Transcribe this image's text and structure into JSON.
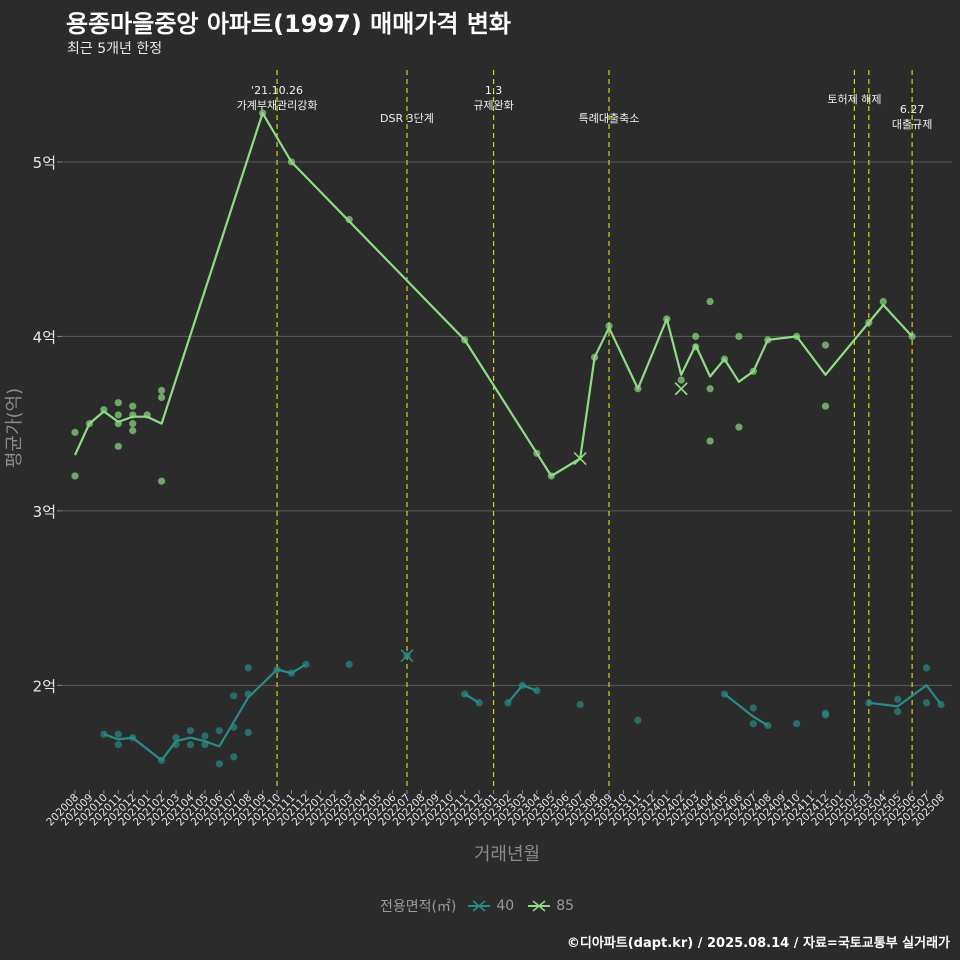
{
  "title": "용종마을중앙 아파트(1997) 매매가격 변화",
  "subtitle": "최근 5개년 한정",
  "caption": "©디아파트(dapt.kr) / 2025.08.14 / 자료=국토교통부 실거래가",
  "legend": {
    "title": "전용면적(㎡)",
    "items": [
      {
        "label": "40",
        "color": "#2a8c88"
      },
      {
        "label": "85",
        "color": "#8fdc84"
      }
    ]
  },
  "colors": {
    "background": "#2b2b2b",
    "grid": "#5a5a5a",
    "event_line": "#d4d41a",
    "series_40": "#2a8c88",
    "series_85": "#8fdc84"
  },
  "chart_data": {
    "type": "line",
    "xlabel": "거래년월",
    "ylabel": "평균가(억)",
    "ylim": [
      1.4,
      5.55
    ],
    "yticks": [
      {
        "value": 2,
        "label": "2억"
      },
      {
        "value": 3,
        "label": "3억"
      },
      {
        "value": 4,
        "label": "4억"
      },
      {
        "value": 5,
        "label": "5억"
      }
    ],
    "x_categories": [
      "202008",
      "202009",
      "202010",
      "202011",
      "202012",
      "202101",
      "202102",
      "202103",
      "202104",
      "202105",
      "202106",
      "202107",
      "202108",
      "202109",
      "202110",
      "202111",
      "202112",
      "202201",
      "202202",
      "202203",
      "202204",
      "202205",
      "202206",
      "202207",
      "202208",
      "202209",
      "202210",
      "202211",
      "202212",
      "202301",
      "202302",
      "202303",
      "202304",
      "202305",
      "202306",
      "202307",
      "202308",
      "202309",
      "202310",
      "202311",
      "202312",
      "202401",
      "202402",
      "202403",
      "202404",
      "202405",
      "202406",
      "202407",
      "202408",
      "202409",
      "202410",
      "202411",
      "202412",
      "202501",
      "202502",
      "202503",
      "202504",
      "202505",
      "202506",
      "202507",
      "202508"
    ],
    "events": [
      {
        "x": "202110",
        "label": "'21.10.26\n가계부채관리강화"
      },
      {
        "x": "202207",
        "label": "DSR 3단계"
      },
      {
        "x": "202301",
        "label": "1.3\n규제완화"
      },
      {
        "x": "202309",
        "label": "특례대출축소"
      },
      {
        "x": "202502",
        "label": "토허제 해제"
      },
      {
        "x": "202503",
        "label": ""
      },
      {
        "x": "202506",
        "label": "6.27\n대출규제"
      }
    ],
    "series": [
      {
        "name": "85",
        "line": [
          {
            "x": "202008",
            "y": 3.32
          },
          {
            "x": "202009",
            "y": 3.5
          },
          {
            "x": "202010",
            "y": 3.57
          },
          {
            "x": "202011",
            "y": 3.51
          },
          {
            "x": "202012",
            "y": 3.54
          },
          {
            "x": "202101",
            "y": 3.54
          },
          {
            "x": "202102",
            "y": 3.5
          },
          {
            "x": "202109",
            "y": 5.28
          },
          {
            "x": "202111",
            "y": 5.0
          },
          {
            "x": "202211",
            "y": 3.98
          },
          {
            "x": "202304",
            "y": 3.33
          },
          {
            "x": "202305",
            "y": 3.2
          },
          {
            "x": "202307",
            "y": 3.3
          },
          {
            "x": "202308",
            "y": 3.88
          },
          {
            "x": "202309",
            "y": 4.05
          },
          {
            "x": "202311",
            "y": 3.7
          },
          {
            "x": "202401",
            "y": 4.1
          },
          {
            "x": "202402",
            "y": 3.78
          },
          {
            "x": "202403",
            "y": 3.95
          },
          {
            "x": "202404",
            "y": 3.77
          },
          {
            "x": "202405",
            "y": 3.87
          },
          {
            "x": "202406",
            "y": 3.74
          },
          {
            "x": "202407",
            "y": 3.8
          },
          {
            "x": "202408",
            "y": 3.98
          },
          {
            "x": "202410",
            "y": 4.0
          },
          {
            "x": "202412",
            "y": 3.78
          },
          {
            "x": "202503",
            "y": 4.08
          },
          {
            "x": "202504",
            "y": 4.18
          },
          {
            "x": "202506",
            "y": 4.0
          }
        ],
        "points": [
          {
            "x": "202008",
            "y": 3.45
          },
          {
            "x": "202008",
            "y": 3.2
          },
          {
            "x": "202009",
            "y": 3.5
          },
          {
            "x": "202010",
            "y": 3.58
          },
          {
            "x": "202011",
            "y": 3.62
          },
          {
            "x": "202011",
            "y": 3.55
          },
          {
            "x": "202011",
            "y": 3.5
          },
          {
            "x": "202011",
            "y": 3.37
          },
          {
            "x": "202012",
            "y": 3.6
          },
          {
            "x": "202012",
            "y": 3.55
          },
          {
            "x": "202012",
            "y": 3.5
          },
          {
            "x": "202012",
            "y": 3.46
          },
          {
            "x": "202101",
            "y": 3.55
          },
          {
            "x": "202102",
            "y": 3.69
          },
          {
            "x": "202102",
            "y": 3.65
          },
          {
            "x": "202102",
            "y": 3.17
          },
          {
            "x": "202109",
            "y": 5.28
          },
          {
            "x": "202111",
            "y": 5.0
          },
          {
            "x": "202203",
            "y": 4.67
          },
          {
            "x": "202211",
            "y": 3.98
          },
          {
            "x": "202304",
            "y": 3.33
          },
          {
            "x": "202305",
            "y": 3.2
          },
          {
            "x": "202308",
            "y": 3.88
          },
          {
            "x": "202309",
            "y": 4.06
          },
          {
            "x": "202311",
            "y": 3.7
          },
          {
            "x": "202401",
            "y": 4.1
          },
          {
            "x": "202402",
            "y": 3.75
          },
          {
            "x": "202403",
            "y": 4.0
          },
          {
            "x": "202403",
            "y": 3.94
          },
          {
            "x": "202404",
            "y": 4.2
          },
          {
            "x": "202404",
            "y": 3.7
          },
          {
            "x": "202404",
            "y": 3.4
          },
          {
            "x": "202405",
            "y": 3.87
          },
          {
            "x": "202406",
            "y": 4.0
          },
          {
            "x": "202406",
            "y": 3.48
          },
          {
            "x": "202407",
            "y": 3.8
          },
          {
            "x": "202408",
            "y": 3.98
          },
          {
            "x": "202410",
            "y": 4.0
          },
          {
            "x": "202412",
            "y": 3.95
          },
          {
            "x": "202412",
            "y": 3.6
          },
          {
            "x": "202503",
            "y": 4.08
          },
          {
            "x": "202504",
            "y": 4.2
          },
          {
            "x": "202506",
            "y": 4.0
          }
        ],
        "cancelled": [
          {
            "x": "202307",
            "y": 3.3
          },
          {
            "x": "202402",
            "y": 3.7
          }
        ]
      },
      {
        "name": "40",
        "line": [
          [
            {
              "x": "202010",
              "y": 1.72
            },
            {
              "x": "202011",
              "y": 1.69
            },
            {
              "x": "202012",
              "y": 1.7
            },
            {
              "x": "202102",
              "y": 1.57
            },
            {
              "x": "202103",
              "y": 1.68
            },
            {
              "x": "202104",
              "y": 1.7
            },
            {
              "x": "202105",
              "y": 1.68
            },
            {
              "x": "202106",
              "y": 1.65
            },
            {
              "x": "202108",
              "y": 1.93
            },
            {
              "x": "202110",
              "y": 2.09
            },
            {
              "x": "202111",
              "y": 2.07
            },
            {
              "x": "202112",
              "y": 2.12
            }
          ],
          [
            {
              "x": "202211",
              "y": 1.95
            },
            {
              "x": "202212",
              "y": 1.9
            }
          ],
          [
            {
              "x": "202302",
              "y": 1.9
            },
            {
              "x": "202303",
              "y": 2.0
            },
            {
              "x": "202304",
              "y": 1.97
            }
          ],
          [
            {
              "x": "202405",
              "y": 1.95
            },
            {
              "x": "202407",
              "y": 1.82
            },
            {
              "x": "202408",
              "y": 1.77
            }
          ],
          [
            {
              "x": "202503",
              "y": 1.9
            },
            {
              "x": "202505",
              "y": 1.88
            },
            {
              "x": "202507",
              "y": 2.0
            },
            {
              "x": "202508",
              "y": 1.89
            }
          ]
        ],
        "points": [
          {
            "x": "202010",
            "y": 1.72
          },
          {
            "x": "202011",
            "y": 1.72
          },
          {
            "x": "202011",
            "y": 1.66
          },
          {
            "x": "202012",
            "y": 1.7
          },
          {
            "x": "202102",
            "y": 1.57
          },
          {
            "x": "202103",
            "y": 1.7
          },
          {
            "x": "202103",
            "y": 1.66
          },
          {
            "x": "202104",
            "y": 1.74
          },
          {
            "x": "202104",
            "y": 1.66
          },
          {
            "x": "202105",
            "y": 1.71
          },
          {
            "x": "202105",
            "y": 1.66
          },
          {
            "x": "202106",
            "y": 1.74
          },
          {
            "x": "202106",
            "y": 1.55
          },
          {
            "x": "202107",
            "y": 1.94
          },
          {
            "x": "202107",
            "y": 1.76
          },
          {
            "x": "202107",
            "y": 1.59
          },
          {
            "x": "202108",
            "y": 2.1
          },
          {
            "x": "202108",
            "y": 1.95
          },
          {
            "x": "202108",
            "y": 1.73
          },
          {
            "x": "202110",
            "y": 2.09
          },
          {
            "x": "202111",
            "y": 2.07
          },
          {
            "x": "202112",
            "y": 2.12
          },
          {
            "x": "202203",
            "y": 2.12
          },
          {
            "x": "202207",
            "y": 2.17
          },
          {
            "x": "202211",
            "y": 1.95
          },
          {
            "x": "202212",
            "y": 1.9
          },
          {
            "x": "202302",
            "y": 1.9
          },
          {
            "x": "202303",
            "y": 2.0
          },
          {
            "x": "202304",
            "y": 1.97
          },
          {
            "x": "202307",
            "y": 1.89
          },
          {
            "x": "202311",
            "y": 1.8
          },
          {
            "x": "202405",
            "y": 1.95
          },
          {
            "x": "202407",
            "y": 1.87
          },
          {
            "x": "202407",
            "y": 1.78
          },
          {
            "x": "202408",
            "y": 1.77
          },
          {
            "x": "202410",
            "y": 1.78
          },
          {
            "x": "202412",
            "y": 1.84
          },
          {
            "x": "202412",
            "y": 1.83
          },
          {
            "x": "202503",
            "y": 1.9
          },
          {
            "x": "202505",
            "y": 1.92
          },
          {
            "x": "202505",
            "y": 1.85
          },
          {
            "x": "202507",
            "y": 2.1
          },
          {
            "x": "202507",
            "y": 1.9
          },
          {
            "x": "202508",
            "y": 1.89
          }
        ],
        "cancelled": [
          {
            "x": "202207",
            "y": 2.17
          }
        ]
      }
    ]
  }
}
